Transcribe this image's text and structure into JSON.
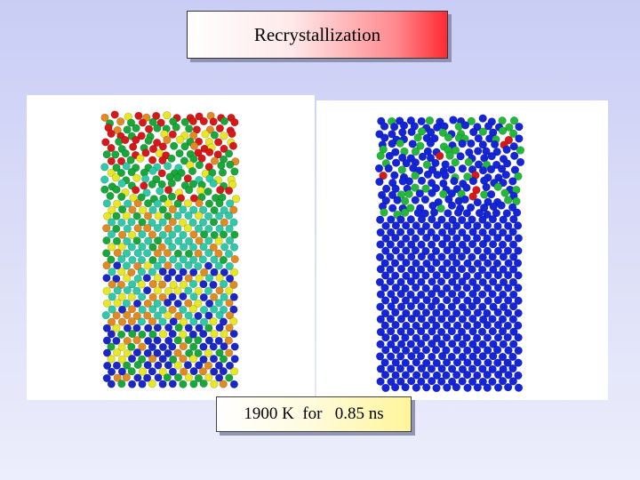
{
  "slide": {
    "title": "Recrystallization",
    "caption": "1900 K  for   0.85 ns"
  },
  "colors": {
    "title_gradient_end": "#ff2a33",
    "caption_gradient_end": "#fff59a",
    "atom_palette_left": [
      "#1a27c8",
      "#18a83a",
      "#2ec9a7",
      "#e8e822",
      "#e08a20",
      "#d81818"
    ],
    "atom_palette_right": [
      "#1424d8",
      "#22b83a",
      "#d81818"
    ]
  },
  "images": {
    "left": "atomistic-simulation-colored-by-order",
    "right": "atomistic-simulation-crystal-vs-disordered"
  }
}
